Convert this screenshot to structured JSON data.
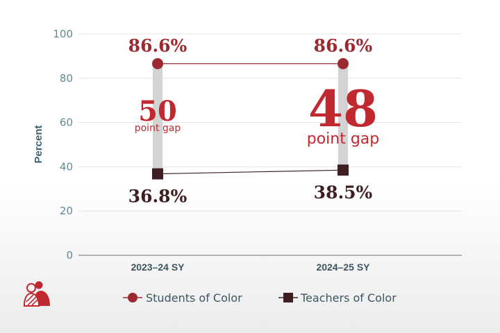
{
  "chart_data": {
    "type": "dumbbell",
    "categories": [
      "2023–24 SY",
      "2024–25 SY"
    ],
    "ylabel": "Percent",
    "ylim": [
      0,
      100
    ],
    "yticks": [
      0,
      20,
      40,
      60,
      80,
      100
    ],
    "grid": true,
    "legend_position": "bottom-center",
    "series": [
      {
        "name": "Students of Color",
        "values": [
          86.6,
          86.6
        ],
        "labels": [
          "86.6%",
          "86.6%"
        ],
        "marker": "circle",
        "color": "#9b2a30"
      },
      {
        "name": "Teachers of Color",
        "values": [
          36.8,
          38.5
        ],
        "labels": [
          "36.8%",
          "38.5%"
        ],
        "marker": "square",
        "color": "#3d1f22"
      }
    ],
    "gaps": [
      {
        "value": "50",
        "text": "point gap"
      },
      {
        "value": "48",
        "text": "point gap"
      }
    ]
  },
  "colors": {
    "accent": "#c0292f",
    "students": "#9b2a30",
    "teachers": "#3d1f22",
    "gap_bar": "#d3d3d3",
    "axis_text": "#5f8a94"
  },
  "icon": "people-group-icon"
}
